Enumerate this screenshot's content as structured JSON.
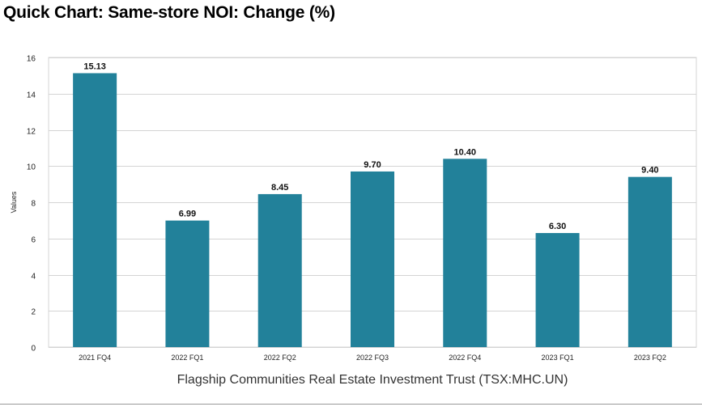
{
  "page": {
    "title": "Quick Chart: Same-store NOI: Change (%)",
    "company": "Flagship Communities Real Estate Investment Trust (TSX:MHC.UN)"
  },
  "colors": {
    "bar": "#22819A",
    "grid": "#d4d4d4",
    "axis_text": "#222222"
  },
  "chart_data": {
    "type": "bar",
    "title": "Quick Chart: Same-store NOI: Change (%)",
    "xlabel": "",
    "ylabel": "Values",
    "ylim": [
      0,
      16
    ],
    "yticks": [
      0,
      2,
      4,
      6,
      8,
      10,
      12,
      14,
      16
    ],
    "grid": true,
    "categories": [
      "2021 FQ4",
      "2022 FQ1",
      "2022 FQ2",
      "2022 FQ3",
      "2022 FQ4",
      "2023 FQ1",
      "2023 FQ2"
    ],
    "values": [
      15.13,
      6.99,
      8.45,
      9.7,
      10.4,
      6.3,
      9.4
    ],
    "data_labels": [
      "15.13",
      "6.99",
      "8.45",
      "9.70",
      "10.40",
      "6.30",
      "9.40"
    ]
  }
}
